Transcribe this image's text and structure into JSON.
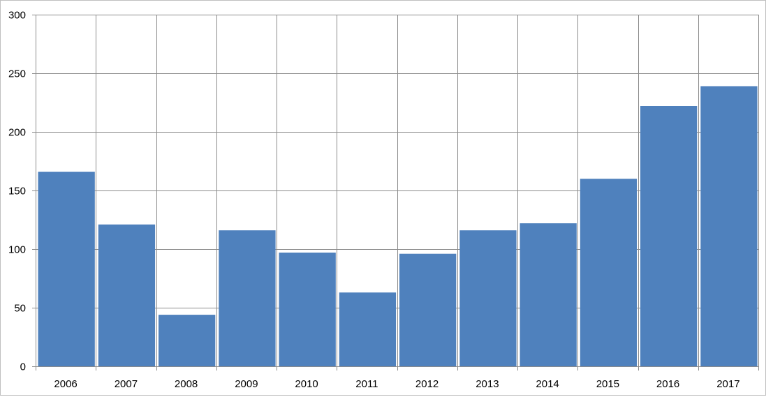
{
  "chart_data": {
    "type": "bar",
    "title": "",
    "xlabel": "",
    "ylabel": "",
    "categories": [
      "2006",
      "2007",
      "2008",
      "2009",
      "2010",
      "2011",
      "2012",
      "2013",
      "2014",
      "2015",
      "2016",
      "2017"
    ],
    "series": [
      {
        "values": [
          166,
          121,
          44,
          116,
          97,
          63,
          96,
          116,
          122,
          160,
          222,
          239
        ],
        "color": "#4f81bd"
      }
    ],
    "ylim": [
      0,
      300
    ],
    "yticks": [
      0,
      50,
      100,
      150,
      200,
      250,
      300
    ],
    "grid": true,
    "legend": "none"
  }
}
